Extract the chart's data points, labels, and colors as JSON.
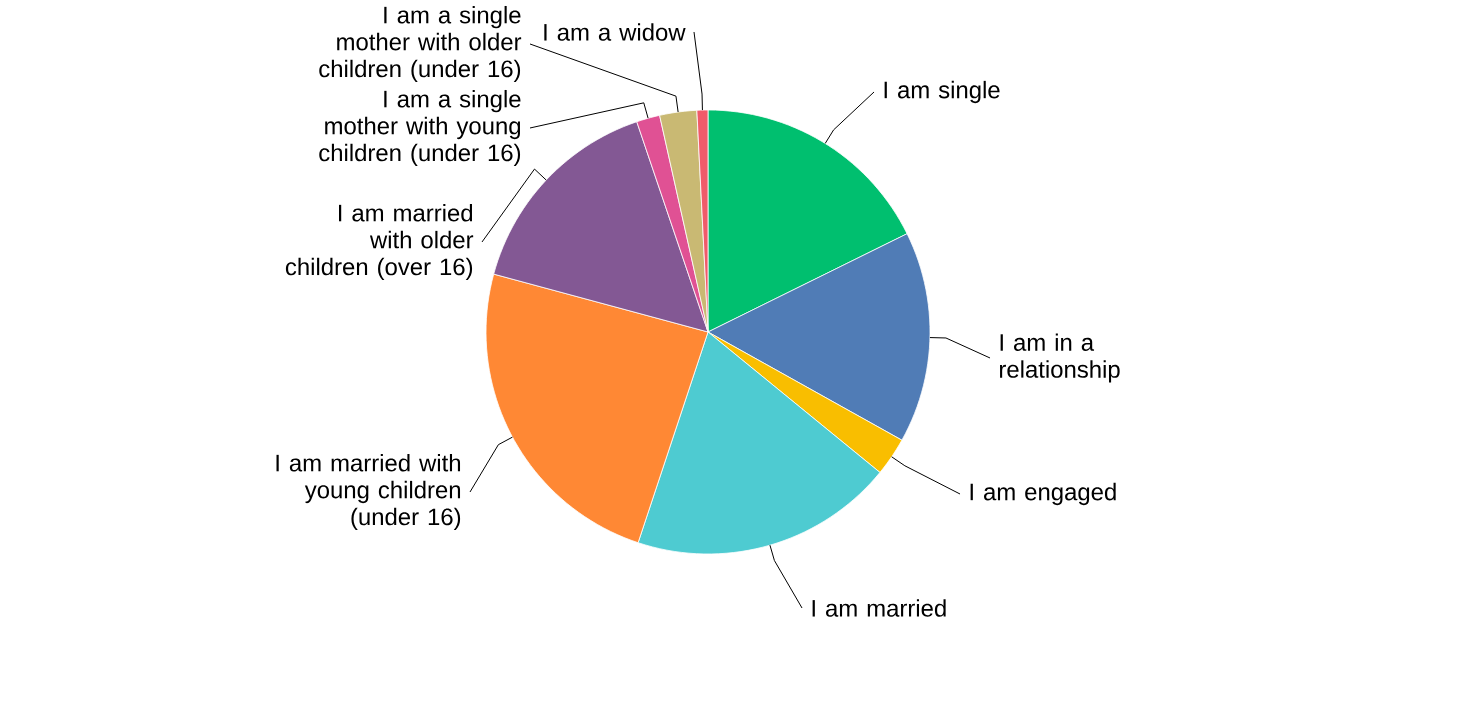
{
  "chart_data": {
    "type": "pie",
    "categories": [
      "I am single",
      "I am in a relationship",
      "I am engaged",
      "I am married",
      "I am married with young children (under 16)",
      "I am married with older children (over 16)",
      "I am a single mother with young children (under 16)",
      "I am a single mother with older children (under 16)",
      "I am a widow"
    ],
    "values": [
      17.7,
      15.4,
      2.8,
      19.2,
      24.1,
      15.6,
      1.7,
      2.7,
      0.8
    ],
    "colors": [
      "#00bf6f",
      "#507cb6",
      "#f9be00",
      "#4ecbd1",
      "#ff8834",
      "#835894",
      "#e05194",
      "#c9b973",
      "#f05b6a"
    ]
  }
}
